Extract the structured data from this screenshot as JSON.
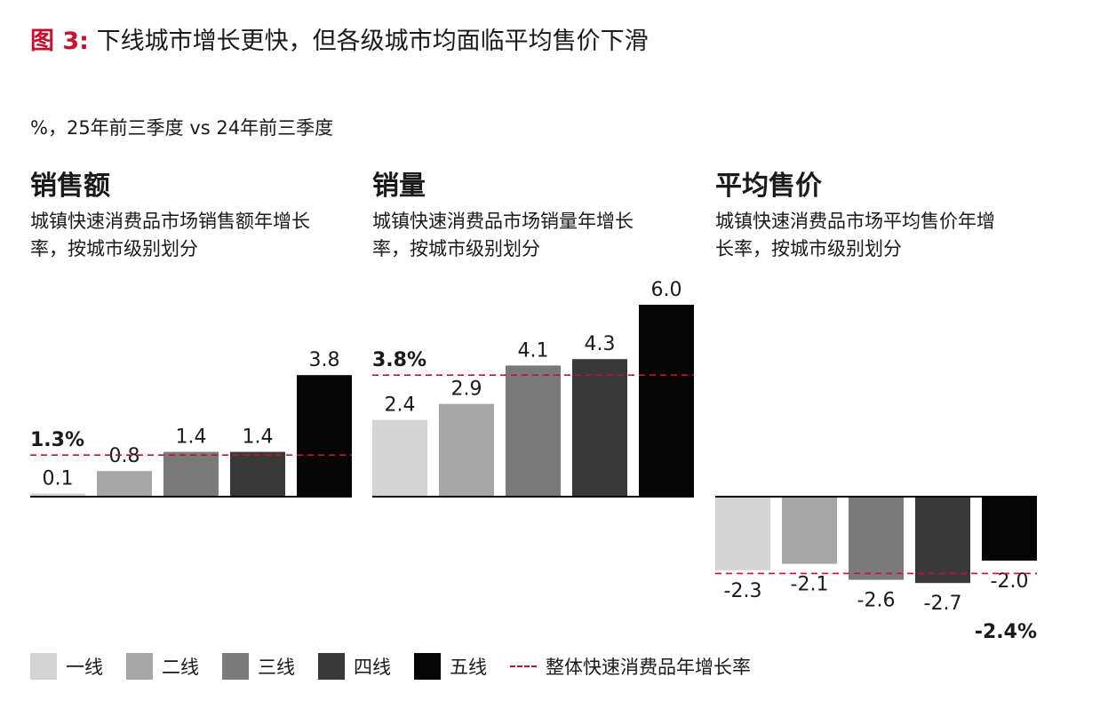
{
  "header": {
    "fig_label": "图 3:",
    "title": "下线城市增长更快，但各级城市均面临平均售价下滑",
    "subtitle": "%，25年前三季度 vs 24年前三季度"
  },
  "colors": {
    "tier1": "#d4d4d4",
    "tier2": "#a6a6a6",
    "tier3": "#7a7a7a",
    "tier4": "#383838",
    "tier5": "#050505",
    "overall_line": "#c8102e",
    "accent_red": "#c8102e"
  },
  "legend": {
    "items": [
      {
        "label": "一线",
        "color": "#d4d4d4"
      },
      {
        "label": "二线",
        "color": "#a6a6a6"
      },
      {
        "label": "三线",
        "color": "#7a7a7a"
      },
      {
        "label": "四线",
        "color": "#383838"
      },
      {
        "label": "五线",
        "color": "#050505"
      }
    ],
    "line_label": "整体快速消费品年增长率"
  },
  "chart_data": [
    {
      "type": "bar",
      "title": "销售额",
      "subtitle": "城镇快速消费品市场销售额年增长率，按城市级别划分",
      "categories": [
        "一线",
        "二线",
        "三线",
        "四线",
        "五线"
      ],
      "values": [
        0.1,
        0.8,
        1.4,
        1.4,
        3.8
      ],
      "value_labels": [
        "0.1",
        "0.8",
        "1.4",
        "1.4",
        "3.8"
      ],
      "reference_line": {
        "value": 1.3,
        "label": "1.3%"
      }
    },
    {
      "type": "bar",
      "title": "销量",
      "subtitle": "城镇快速消费品市场销量年增长率，按城市级别划分",
      "categories": [
        "一线",
        "二线",
        "三线",
        "四线",
        "五线"
      ],
      "values": [
        2.4,
        2.9,
        4.1,
        4.3,
        6.0
      ],
      "value_labels": [
        "2.4",
        "2.9",
        "4.1",
        "4.3",
        "6.0"
      ],
      "reference_line": {
        "value": 3.8,
        "label": "3.8%"
      }
    },
    {
      "type": "bar",
      "title": "平均售价",
      "subtitle": "城镇快速消费品市场平均售价年增长率，按城市级别划分",
      "categories": [
        "一线",
        "二线",
        "三线",
        "四线",
        "五线"
      ],
      "values": [
        -2.3,
        -2.1,
        -2.6,
        -2.7,
        -2.0
      ],
      "value_labels": [
        "-2.3",
        "-2.1",
        "-2.6",
        "-2.7",
        "-2.0"
      ],
      "reference_line": {
        "value": -2.4,
        "label": "-2.4%"
      }
    }
  ]
}
